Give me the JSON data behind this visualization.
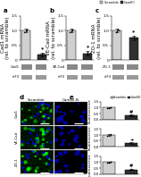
{
  "panel_a": {
    "bar_values": [
      1.0,
      0.18
    ],
    "bar_colors": [
      "#d0d0d0",
      "#303030"
    ],
    "ylabel": "Cad1 mRNA\n(rel. to scramble)",
    "ylim": [
      0,
      1.5
    ],
    "yticks": [
      0.0,
      0.5,
      1.0,
      1.5
    ],
    "ytick_labels": [
      "0",
      "0.5",
      "1.0",
      "1.5"
    ],
    "stars": "*",
    "dots_scramble": [
      0.95,
      1.02,
      0.98,
      1.04
    ],
    "dots_camkii": [
      0.2,
      0.16,
      0.22,
      0.18
    ]
  },
  "panel_b": {
    "bar_values": [
      1.0,
      0.22
    ],
    "bar_colors": [
      "#d0d0d0",
      "#303030"
    ],
    "ylabel": "VE-Cad mRNA\n(rel. to scramble)",
    "ylim": [
      0,
      1.5
    ],
    "yticks": [
      0.0,
      0.5,
      1.0,
      1.5
    ],
    "ytick_labels": [
      "0",
      "0.5",
      "1.0",
      "1.5"
    ],
    "stars": "*",
    "dots_scramble": [
      0.95,
      1.02,
      0.98,
      1.04
    ],
    "dots_camkii": [
      0.24,
      0.2,
      0.26,
      0.22
    ]
  },
  "panel_c": {
    "bar_values": [
      1.0,
      0.75
    ],
    "bar_colors": [
      "#d0d0d0",
      "#303030"
    ],
    "ylabel": "ZO-1 mRNA\n(rel. to scramble)",
    "ylim": [
      0,
      1.5
    ],
    "yticks": [
      0.0,
      0.5,
      1.0,
      1.5
    ],
    "ytick_labels": [
      "0",
      "0.5",
      "1.0",
      "1.5"
    ],
    "stars": "*",
    "dots_scramble": [
      0.95,
      1.02,
      0.98,
      1.04
    ],
    "dots_camkii": [
      0.72,
      0.78,
      0.74,
      0.76
    ]
  },
  "wb_labels": [
    [
      "Cad1",
      "eIF3"
    ],
    [
      "VE-Cad",
      "eIF3"
    ],
    [
      "ZO-1",
      "eIF3"
    ]
  ],
  "panel_e_top": {
    "bar_values": [
      1.0,
      0.32
    ],
    "bar_colors": [
      "#d0d0d0",
      "#303030"
    ],
    "ylabel": "Relative\nfluorescence",
    "ylim": [
      0,
      1.5
    ],
    "yticks": [
      0.0,
      0.5,
      1.0,
      1.5
    ],
    "stars": "#",
    "dots_scramble": [
      0.95,
      1.02,
      0.98,
      1.04
    ],
    "dots_camkii": [
      0.3,
      0.35,
      0.28,
      0.34
    ]
  },
  "panel_e_mid": {
    "bar_values": [
      1.0,
      0.28
    ],
    "bar_colors": [
      "#d0d0d0",
      "#303030"
    ],
    "ylabel": "Relative\nfluorescence",
    "ylim": [
      0,
      1.5
    ],
    "yticks": [
      0.0,
      0.5,
      1.0,
      1.5
    ],
    "stars": "+",
    "dots_scramble": [
      0.95,
      1.02,
      0.98,
      1.04
    ],
    "dots_camkii": [
      0.26,
      0.3,
      0.28,
      0.27
    ]
  },
  "panel_e_bot": {
    "bar_values": [
      1.0,
      0.38
    ],
    "bar_colors": [
      "#d0d0d0",
      "#303030"
    ],
    "ylabel": "Relative\nfluorescence",
    "ylim": [
      0,
      1.5
    ],
    "yticks": [
      0.0,
      0.5,
      1.0,
      1.5
    ],
    "stars": "#",
    "dots_scramble": [
      0.95,
      1.02,
      0.98,
      1.04
    ],
    "dots_camkii": [
      0.36,
      0.4,
      0.38,
      0.37
    ]
  },
  "legend_labels": [
    "Scramble",
    "CamKII"
  ],
  "legend_colors": [
    "#d0d0d0",
    "#303030"
  ],
  "background_color": "#ffffff",
  "row_labels": [
    "Cad1",
    "VE-Cad",
    "ZO-1"
  ],
  "col_labels": [
    "Scramble",
    "CamKII-N"
  ],
  "panel_labels": [
    "a",
    "b",
    "c",
    "d",
    "e"
  ]
}
